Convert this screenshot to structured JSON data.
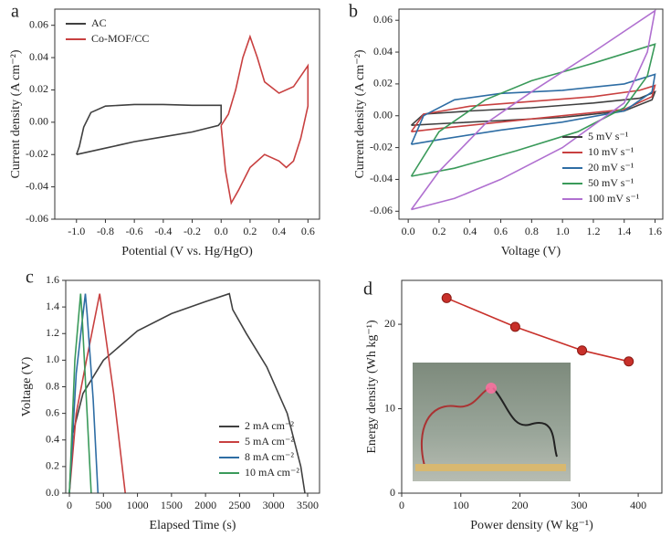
{
  "chart_data": [
    {
      "type": "line",
      "panel": "a",
      "xlabel": "Potential (V vs. Hg/HgO)",
      "ylabel": "Current density (A cm⁻²)",
      "xlim": [
        -1.15,
        0.68
      ],
      "ylim": [
        -0.06,
        0.07
      ],
      "xticks": [
        {
          "value": -1.0,
          "label": "-1.0"
        },
        -0.8,
        -0.6,
        -0.4,
        -0.2,
        {
          "value": 0,
          "label": "0.0"
        },
        0.2,
        0.4,
        0.6
      ],
      "yticks": [
        -0.06,
        -0.04,
        -0.02,
        {
          "value": 0,
          "label": "0.00"
        },
        0.02,
        0.04,
        0.06
      ],
      "legend": "upper left",
      "series": [
        {
          "name": "AC",
          "color": "#404040",
          "x": [
            -1.0,
            -0.98,
            -0.95,
            -0.9,
            -0.8,
            -0.6,
            -0.4,
            -0.2,
            0.0,
            0.0,
            -0.02,
            -0.2,
            -0.4,
            -0.6,
            -0.8,
            -1.0
          ],
          "values": [
            -0.02,
            -0.015,
            -0.003,
            0.006,
            0.01,
            0.011,
            0.011,
            0.0105,
            0.0105,
            0.0,
            -0.002,
            -0.006,
            -0.009,
            -0.012,
            -0.016,
            -0.02
          ]
        },
        {
          "name": "Co-MOF/CC",
          "color": "#c84040",
          "x": [
            0.0,
            0.05,
            0.1,
            0.15,
            0.2,
            0.25,
            0.3,
            0.4,
            0.5,
            0.6,
            0.6,
            0.55,
            0.5,
            0.45,
            0.4,
            0.3,
            0.2,
            0.12,
            0.07,
            0.03,
            0.0
          ],
          "values": [
            -0.002,
            0.005,
            0.02,
            0.04,
            0.053,
            0.04,
            0.025,
            0.018,
            0.022,
            0.035,
            0.01,
            -0.01,
            -0.024,
            -0.028,
            -0.024,
            -0.02,
            -0.028,
            -0.042,
            -0.05,
            -0.03,
            -0.002
          ]
        }
      ]
    },
    {
      "type": "line",
      "panel": "b",
      "xlabel": "Voltage (V)",
      "ylabel": "Current density (A cm⁻²)",
      "xlim": [
        -0.06,
        1.65
      ],
      "ylim": [
        -0.065,
        0.067
      ],
      "xticks": [
        {
          "value": 0,
          "label": "0.0"
        },
        0.2,
        0.4,
        0.6,
        0.8,
        {
          "value": 1,
          "label": "1.0"
        },
        1.2,
        1.4,
        1.6
      ],
      "yticks": [
        -0.06,
        -0.04,
        -0.02,
        {
          "value": 0,
          "label": "0.00"
        },
        0.02,
        0.04,
        0.06
      ],
      "legend": "lower right",
      "series": [
        {
          "name": "5 mV s⁻¹",
          "color": "#404040",
          "x": [
            0.02,
            0.1,
            0.4,
            0.8,
            1.2,
            1.5,
            1.6,
            1.58,
            1.4,
            1.0,
            0.6,
            0.2,
            0.02
          ],
          "values": [
            -0.006,
            0.001,
            0.003,
            0.005,
            0.008,
            0.011,
            0.015,
            0.01,
            0.003,
            -0.001,
            -0.003,
            -0.005,
            -0.006
          ]
        },
        {
          "name": "10 mV s⁻¹",
          "color": "#c84040",
          "x": [
            0.02,
            0.1,
            0.4,
            0.8,
            1.2,
            1.5,
            1.6,
            1.58,
            1.4,
            1.0,
            0.6,
            0.2,
            0.02
          ],
          "values": [
            -0.01,
            0.001,
            0.006,
            0.009,
            0.012,
            0.016,
            0.019,
            0.012,
            0.004,
            0.0,
            -0.004,
            -0.008,
            -0.01
          ]
        },
        {
          "name": "20 mV s⁻¹",
          "color": "#2e6da4",
          "x": [
            0.02,
            0.1,
            0.3,
            0.6,
            1.0,
            1.4,
            1.6,
            1.58,
            1.4,
            1.0,
            0.6,
            0.2,
            0.02
          ],
          "values": [
            -0.018,
            0.0,
            0.01,
            0.014,
            0.016,
            0.02,
            0.026,
            0.015,
            0.003,
            -0.004,
            -0.009,
            -0.015,
            -0.018
          ]
        },
        {
          "name": "50 mV s⁻¹",
          "color": "#3a9a5a",
          "x": [
            0.02,
            0.2,
            0.5,
            0.8,
            1.2,
            1.6,
            1.55,
            1.4,
            1.1,
            0.7,
            0.3,
            0.02
          ],
          "values": [
            -0.038,
            -0.01,
            0.01,
            0.022,
            0.033,
            0.045,
            0.025,
            0.005,
            -0.01,
            -0.022,
            -0.033,
            -0.038
          ]
        },
        {
          "name": "100 mV s⁻¹",
          "color": "#b070d0",
          "x": [
            0.02,
            0.2,
            0.5,
            0.8,
            1.2,
            1.6,
            1.55,
            1.4,
            1.0,
            0.6,
            0.3,
            0.02
          ],
          "values": [
            -0.059,
            -0.035,
            -0.005,
            0.015,
            0.04,
            0.066,
            0.04,
            0.008,
            -0.02,
            -0.04,
            -0.052,
            -0.059
          ]
        }
      ]
    },
    {
      "type": "line",
      "panel": "c",
      "xlabel": "Elapsed Time (s)",
      "ylabel": "Voltage (V)",
      "xlim": [
        -54,
        3675
      ],
      "ylim": [
        0,
        1.6
      ],
      "xticks": [
        0,
        500,
        1000,
        1500,
        2000,
        2500,
        3000,
        3500
      ],
      "yticks": [
        {
          "value": 0,
          "label": "0.0"
        },
        0.2,
        0.4,
        0.6,
        0.8,
        {
          "value": 1,
          "label": "1.0"
        },
        1.2,
        1.4,
        1.6
      ],
      "legend": "lower right",
      "series": [
        {
          "name": "2 mA cm⁻²",
          "color": "#404040",
          "x": [
            0,
            50,
            200,
            500,
            1000,
            1500,
            2000,
            2350,
            2400,
            2600,
            2900,
            3200,
            3400,
            3460
          ],
          "values": [
            0,
            0.45,
            0.75,
            1.0,
            1.22,
            1.35,
            1.44,
            1.5,
            1.38,
            1.2,
            0.95,
            0.6,
            0.2,
            0
          ]
        },
        {
          "name": "5 mA cm⁻²",
          "color": "#c84040",
          "x": [
            0,
            100,
            250,
            445,
            500,
            650,
            820
          ],
          "values": [
            0,
            0.6,
            1.0,
            1.5,
            1.3,
            0.75,
            0
          ]
        },
        {
          "name": "8 mA cm⁻²",
          "color": "#2e6da4",
          "x": [
            0,
            100,
            235,
            260,
            350,
            420
          ],
          "values": [
            0,
            0.9,
            1.5,
            1.35,
            0.7,
            0
          ]
        },
        {
          "name": "10 mA cm⁻²",
          "color": "#3a9a5a",
          "x": [
            0,
            80,
            165,
            185,
            260,
            320
          ],
          "values": [
            0,
            1.0,
            1.5,
            1.35,
            0.6,
            0
          ]
        }
      ]
    },
    {
      "type": "line",
      "panel": "d",
      "xlabel": "Power density (W kg⁻¹)",
      "ylabel": "Energy density (Wh kg⁻¹)",
      "xlim": [
        0,
        440
      ],
      "ylim": [
        0,
        25.2
      ],
      "xticks": [
        0,
        100,
        200,
        300,
        400
      ],
      "yticks": [
        0,
        10,
        20
      ],
      "markers": true,
      "series": [
        {
          "color": "#c8302a",
          "x": [
            76,
            192,
            305,
            384
          ],
          "values": [
            23.1,
            19.7,
            16.9,
            15.6
          ]
        }
      ]
    }
  ]
}
